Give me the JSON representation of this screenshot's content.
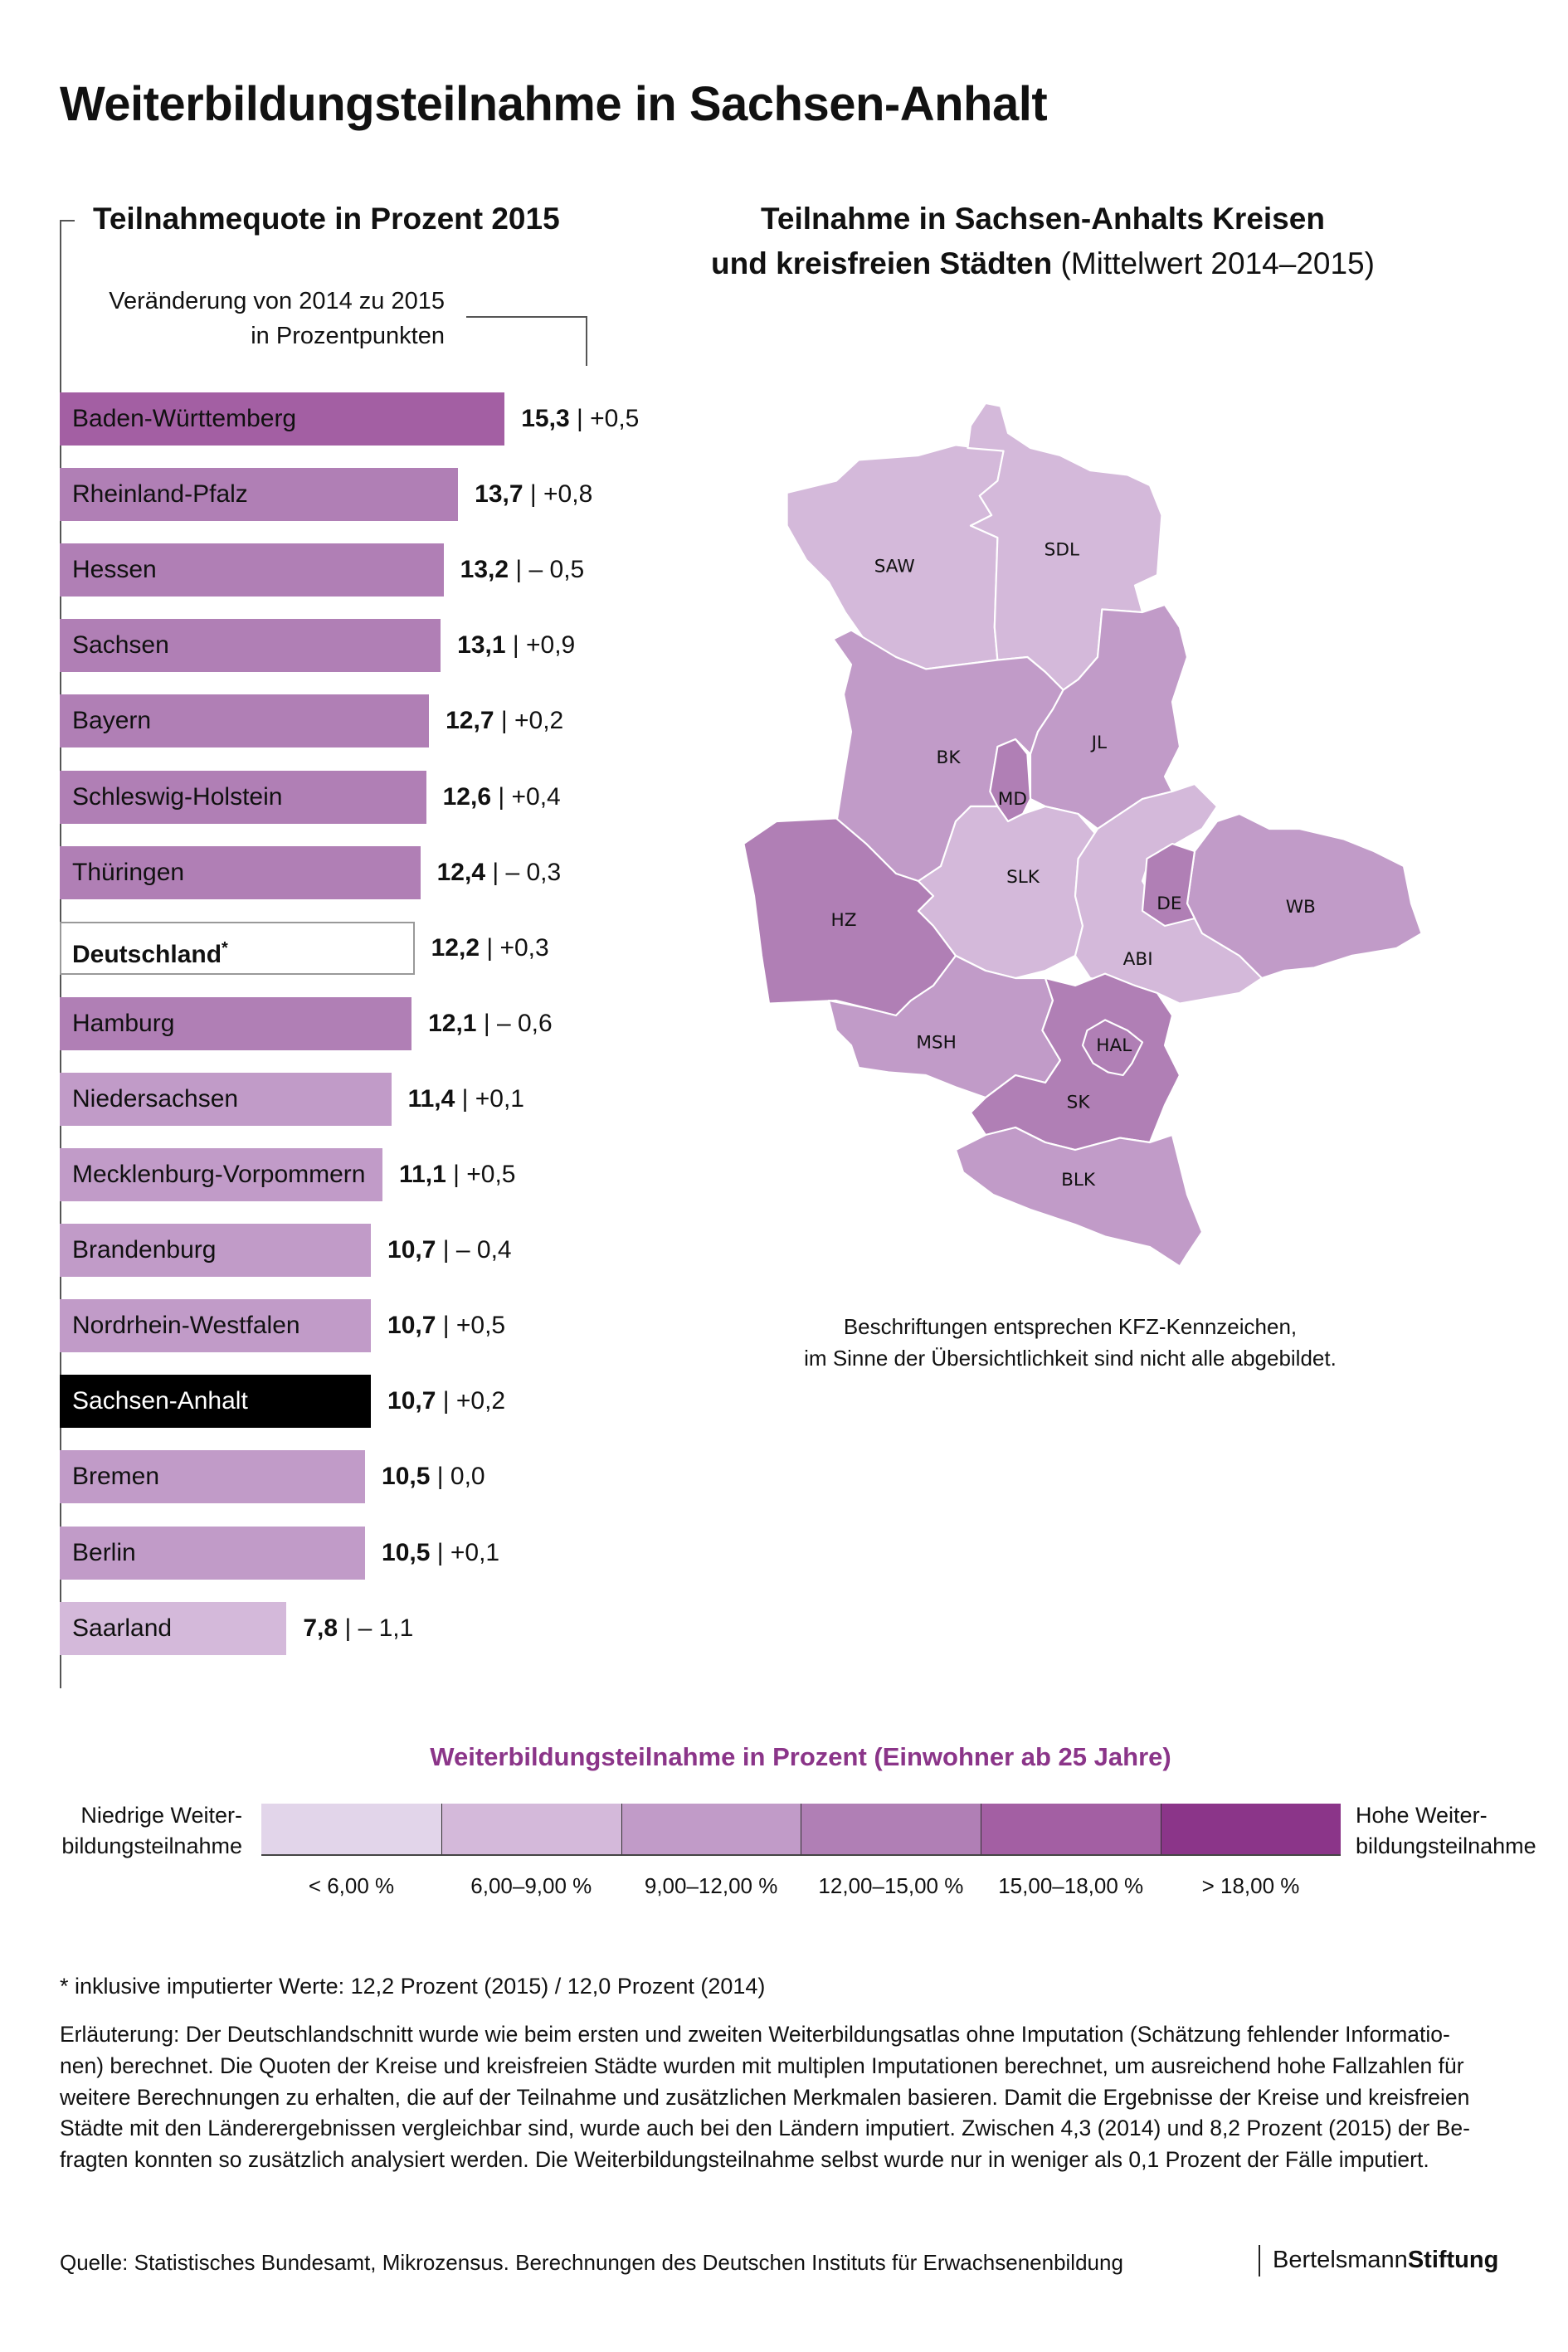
{
  "title": "Weiterbildungsteilnahme in Sachsen-Anhalt",
  "colors": {
    "c1": "#e2d5ea",
    "c2": "#d4b9da",
    "c3": "#c19bc8",
    "c4": "#b07fb5",
    "c5": "#a35fa3",
    "c6": "#8b3589",
    "highlight": "#000000",
    "germany": "#ffffff"
  },
  "chart_data": [
    {
      "type": "bar",
      "orientation": "horizontal",
      "title": "Teilnahmequote in Prozent 2015",
      "subtitle_line1": "Veränderung von 2014 zu 2015",
      "subtitle_line2": "in Prozentpunkten",
      "categories": [
        "Baden-Württemberg",
        "Rheinland-Pfalz",
        "Hessen",
        "Sachsen",
        "Bayern",
        "Schleswig-Holstein",
        "Thüringen",
        "Deutschland",
        "Hamburg",
        "Niedersachsen",
        "Mecklenburg-Vorpommern",
        "Brandenburg",
        "Nordrhein-Westfalen",
        "Sachsen-Anhalt",
        "Bremen",
        "Berlin",
        "Saarland"
      ],
      "values": [
        15.3,
        13.7,
        13.2,
        13.1,
        12.7,
        12.6,
        12.4,
        12.2,
        12.1,
        11.4,
        11.1,
        10.7,
        10.7,
        10.7,
        10.5,
        10.5,
        7.8
      ],
      "value_labels": [
        "15,3",
        "13,7",
        "13,2",
        "13,1",
        "12,7",
        "12,6",
        "12,4",
        "12,2",
        "12,1",
        "11,4",
        "11,1",
        "10,7",
        "10,7",
        "10,7",
        "10,5",
        "10,5",
        "7,8"
      ],
      "changes": [
        "| +0,5",
        "| +0,8",
        "| – 0,5",
        "| +0,9",
        "| +0,2",
        "| +0,4",
        "| – 0,3",
        "| +0,3",
        "| – 0,6",
        "| +0,1",
        "| +0,5",
        "| – 0,4",
        "| +0,5",
        "| +0,2",
        "| 0,0",
        "| +0,1",
        "| – 1,1"
      ],
      "color_keys": [
        "c5",
        "c4",
        "c4",
        "c4",
        "c4",
        "c4",
        "c4",
        "germany",
        "c4",
        "c3",
        "c3",
        "c3",
        "c3",
        "highlight",
        "c3",
        "c3",
        "c2"
      ],
      "asterisk": {
        "index": 7,
        "mark": "*"
      }
    },
    {
      "type": "choropleth",
      "title_line1": "Teilnahme in Sachsen-Anhalts Kreisen",
      "title_line2_bold": "und kreisfreien Städten",
      "title_line2_regular": "(Mittelwert 2014–2015)",
      "districts": [
        {
          "code": "SAW",
          "class": "c2"
        },
        {
          "code": "SDL",
          "class": "c2"
        },
        {
          "code": "BK",
          "class": "c3"
        },
        {
          "code": "JL",
          "class": "c3"
        },
        {
          "code": "MD",
          "class": "c4"
        },
        {
          "code": "HZ",
          "class": "c4"
        },
        {
          "code": "SLK",
          "class": "c2"
        },
        {
          "code": "ABI",
          "class": "c2"
        },
        {
          "code": "DE",
          "class": "c4"
        },
        {
          "code": "WB",
          "class": "c3"
        },
        {
          "code": "MSH",
          "class": "c3"
        },
        {
          "code": "SK",
          "class": "c4"
        },
        {
          "code": "HAL",
          "class": "c4"
        },
        {
          "code": "BLK",
          "class": "c3"
        }
      ],
      "note_line1": "Beschriftungen entsprechen KFZ-Kennzeichen,",
      "note_line2": "im Sinne der Übersichtlichkeit sind nicht alle abgebildet."
    }
  ],
  "legend": {
    "title": "Weiterbildungsteilnahme in Prozent (Einwohner ab 25 Jahre)",
    "low_line1": "Niedrige Weiter-",
    "low_line2": "bildungsteilnahme",
    "high_line1": "Hohe Weiter-",
    "high_line2": "bildungsteilnahme",
    "classes": [
      {
        "label": "< 6,00 %",
        "color": "#e2d5ea"
      },
      {
        "label": "6,00–9,00 %",
        "color": "#d4b9da"
      },
      {
        "label": "9,00–12,00 %",
        "color": "#c19bc8"
      },
      {
        "label": "12,00–15,00 %",
        "color": "#b07fb5"
      },
      {
        "label": "15,00–18,00 %",
        "color": "#a35fa3"
      },
      {
        "label": "> 18,00 %",
        "color": "#8b3589"
      }
    ]
  },
  "footnote": "* inklusive imputierter Werte: 12,2 Prozent (2015) / 12,0 Prozent (2014)",
  "explanation": [
    "Erläuterung: Der Deutschlandschnitt wurde wie beim ersten und zweiten Weiterbildungsatlas ohne Imputation (Schätzung fehlender Informatio-",
    "nen) berechnet. Die Quoten der Kreise und kreisfreien Städte wurden mit multiplen Imputationen berechnet, um ausreichend hohe Fallzahlen für",
    "weitere Berechnungen zu erhalten, die auf der Teilnahme und zusätzlichen Merkmalen basieren. Damit die Ergebnisse der Kreise und kreisfreien",
    "Städte mit den Länderergebnissen vergleichbar sind, wurde auch bei den Ländern imputiert. Zwischen 4,3 (2014) und 8,2 Prozent (2015) der Be-",
    "fragten konnten so zusätzlich analysiert werden. Die Weiterbildungsteilnahme selbst wurde nur in weniger als 0,1 Prozent der Fälle imputiert."
  ],
  "source": "Quelle: Statistisches Bundesamt, Mikrozensus. Berechnungen des Deutschen Instituts für Erwachsenenbildung",
  "logo": {
    "regular": "Bertelsmann",
    "bold": "Stiftung"
  }
}
